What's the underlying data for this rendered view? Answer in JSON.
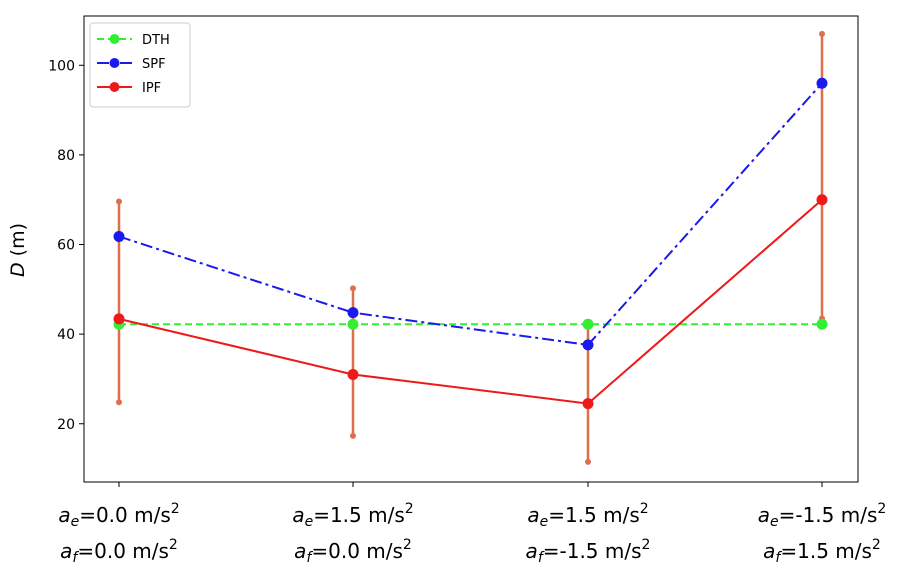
{
  "chart_data": {
    "type": "line",
    "ylabel": "D (m)",
    "ylabel_italic": "D",
    "ylabel_unit": " (m)",
    "ylim": [
      7,
      111
    ],
    "yticks": [
      20,
      40,
      60,
      80,
      100
    ],
    "grid": false,
    "legend_position": "top-left",
    "categories": [
      {
        "line1": {
          "sym": "a",
          "sub": "e",
          "text": "=0.0 m/s",
          "sup": "2"
        },
        "line2": {
          "sym": "a",
          "sub": "f",
          "text": "=0.0 m/s",
          "sup": "2"
        }
      },
      {
        "line1": {
          "sym": "a",
          "sub": "e",
          "text": "=1.5 m/s",
          "sup": "2"
        },
        "line2": {
          "sym": "a",
          "sub": "f",
          "text": "=0.0 m/s",
          "sup": "2"
        }
      },
      {
        "line1": {
          "sym": "a",
          "sub": "e",
          "text": "=1.5 m/s",
          "sup": "2"
        },
        "line2": {
          "sym": "a",
          "sub": "f",
          "text": "=-1.5 m/s",
          "sup": "2"
        }
      },
      {
        "line1": {
          "sym": "a",
          "sub": "e",
          "text": "=-1.5 m/s",
          "sup": "2"
        },
        "line2": {
          "sym": "a",
          "sub": "f",
          "text": "=1.5 m/s",
          "sup": "2"
        }
      }
    ],
    "series": [
      {
        "name": "DTH",
        "values": [
          42.2,
          42.2,
          42.2,
          42.2
        ],
        "color": "#33ee33",
        "linestyle": "dashed"
      },
      {
        "name": "SPF",
        "values": [
          61.8,
          44.8,
          37.6,
          96.0
        ],
        "color": "#1a1aee",
        "linestyle": "dashdot"
      },
      {
        "name": "IPF",
        "values": [
          43.4,
          31.0,
          24.5,
          70.0
        ],
        "color": "#ee1a1a",
        "linestyle": "solid",
        "error_low": [
          24.8,
          17.3,
          11.5,
          43.5
        ],
        "error_high": [
          69.6,
          50.2,
          42.5,
          107.0
        ],
        "error_color": "#dd6f4f"
      }
    ]
  }
}
